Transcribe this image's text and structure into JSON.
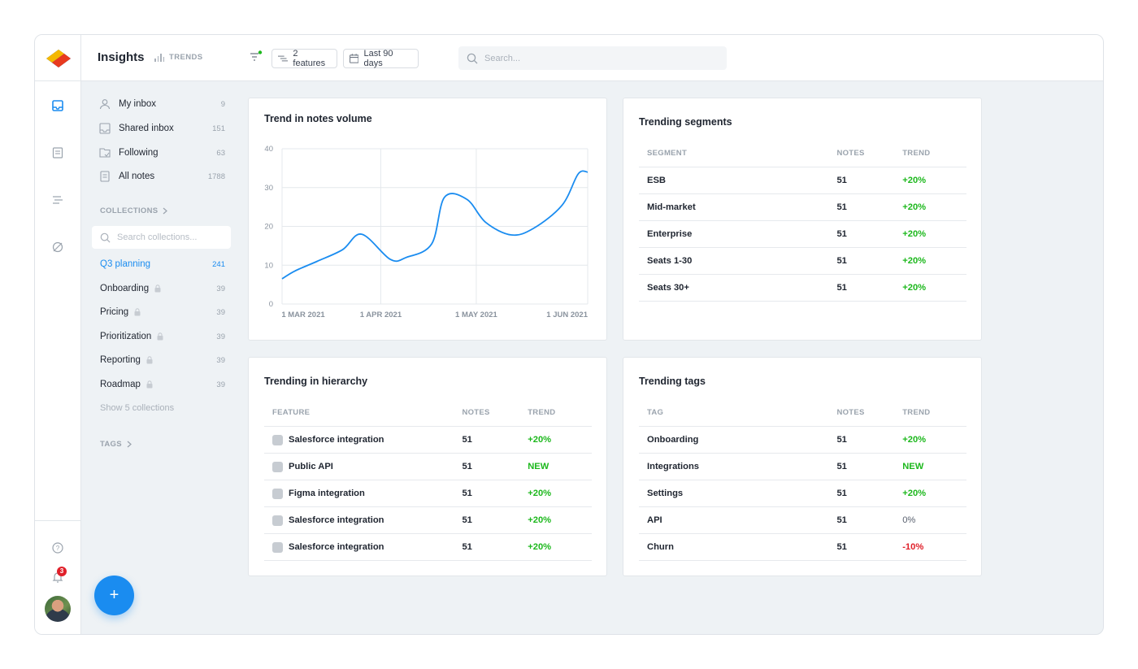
{
  "header": {
    "title": "Insights",
    "trends_label": "TRENDS",
    "features_chip": "2 features",
    "date_chip": "Last 90 days",
    "search_placeholder": "Search..."
  },
  "rail": {
    "notification_count": "3"
  },
  "nav": [
    {
      "label": "My inbox",
      "count": "9",
      "icon": "person-icon"
    },
    {
      "label": "Shared inbox",
      "count": "151",
      "icon": "inbox-icon"
    },
    {
      "label": "Following",
      "count": "63",
      "icon": "following-icon"
    },
    {
      "label": "All notes",
      "count": "1788",
      "icon": "notes-icon"
    }
  ],
  "collections": {
    "label": "COLLECTIONS",
    "search_placeholder": "Search collections...",
    "items": [
      {
        "label": "Q3 planning",
        "count": "241",
        "locked": false,
        "active": true
      },
      {
        "label": "Onboarding",
        "count": "39",
        "locked": true
      },
      {
        "label": "Pricing",
        "count": "39",
        "locked": true
      },
      {
        "label": "Prioritization",
        "count": "39",
        "locked": true
      },
      {
        "label": "Reporting",
        "count": "39",
        "locked": true
      },
      {
        "label": "Roadmap",
        "count": "39",
        "locked": true
      }
    ],
    "show_more": "Show 5 collections"
  },
  "tags_label": "TAGS",
  "fab_label": "+",
  "notes_volume": {
    "title": "Trend in notes volume"
  },
  "chart_data": {
    "type": "line",
    "title": "Trend in notes volume",
    "xlabel": "",
    "ylabel": "",
    "x_tick_labels": [
      "1 MAR 2021",
      "1 APR 2021",
      "1 MAY 2021",
      "1 JUN 2021"
    ],
    "x_ticks": [
      "2021-03-01",
      "2021-04-01",
      "2021-05-01",
      "2021-06-01"
    ],
    "xlim": [
      "2021-03-01",
      "2021-06-05"
    ],
    "y_ticks": [
      0,
      10,
      20,
      30,
      40
    ],
    "ylim": [
      0,
      40
    ],
    "grid": true,
    "color": "#1a8cf0",
    "series": [
      {
        "x": [
          "2021-03-01",
          "2021-03-05",
          "2021-03-12",
          "2021-03-20",
          "2021-03-26",
          "2021-04-04",
          "2021-04-09",
          "2021-04-17",
          "2021-04-21",
          "2021-04-28",
          "2021-05-04",
          "2021-05-12",
          "2021-05-19",
          "2021-05-28",
          "2021-06-02",
          "2021-06-05"
        ],
        "y": [
          6.5,
          8.5,
          11,
          14,
          18,
          11.5,
          12,
          15.5,
          27.5,
          27,
          21,
          17.8,
          19.5,
          25.5,
          33.5,
          34
        ]
      }
    ]
  },
  "segments": {
    "title": "Trending segments",
    "columns": [
      "SEGMENT",
      "NOTES",
      "TREND"
    ],
    "rows": [
      {
        "name": "ESB",
        "notes": "51",
        "trend": "+20%",
        "kind": "pos"
      },
      {
        "name": "Mid-market",
        "notes": "51",
        "trend": "+20%",
        "kind": "pos"
      },
      {
        "name": "Enterprise",
        "notes": "51",
        "trend": "+20%",
        "kind": "pos"
      },
      {
        "name": "Seats 1-30",
        "notes": "51",
        "trend": "+20%",
        "kind": "pos"
      },
      {
        "name": "Seats 30+",
        "notes": "51",
        "trend": "+20%",
        "kind": "pos"
      }
    ]
  },
  "hierarchy": {
    "title": "Trending in hierarchy",
    "columns": [
      "FEATURE",
      "NOTES",
      "TREND"
    ],
    "rows": [
      {
        "name": "Salesforce integration",
        "notes": "51",
        "trend": "+20%",
        "kind": "pos"
      },
      {
        "name": "Public API",
        "notes": "51",
        "trend": "NEW",
        "kind": "pos"
      },
      {
        "name": "Figma integration",
        "notes": "51",
        "trend": "+20%",
        "kind": "pos"
      },
      {
        "name": "Salesforce integration",
        "notes": "51",
        "trend": "+20%",
        "kind": "pos"
      },
      {
        "name": "Salesforce integration",
        "notes": "51",
        "trend": "+20%",
        "kind": "pos"
      }
    ]
  },
  "tags": {
    "title": "Trending tags",
    "columns": [
      "TAG",
      "NOTES",
      "TREND"
    ],
    "rows": [
      {
        "name": "Onboarding",
        "notes": "51",
        "trend": "+20%",
        "kind": "pos"
      },
      {
        "name": "Integrations",
        "notes": "51",
        "trend": "NEW",
        "kind": "pos"
      },
      {
        "name": "Settings",
        "notes": "51",
        "trend": "+20%",
        "kind": "pos"
      },
      {
        "name": "API",
        "notes": "51",
        "trend": "0%",
        "kind": "neutral"
      },
      {
        "name": "Churn",
        "notes": "51",
        "trend": "-10%",
        "kind": "neg"
      }
    ]
  }
}
